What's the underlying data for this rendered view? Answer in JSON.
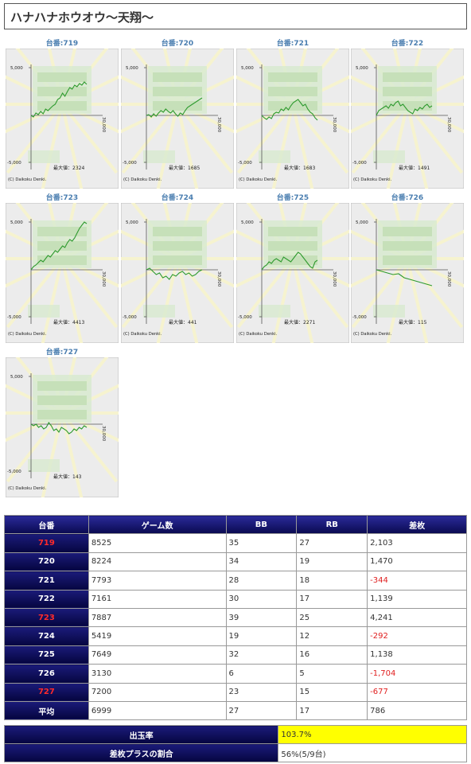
{
  "page": {
    "title": "ハナハナホウオウ〜天翔〜"
  },
  "graph_common": {
    "ytick_top": "5,000",
    "ytick_bottom": "-5,000",
    "xtick": "30,000",
    "credit": "(C) Daikoku Denki.",
    "max_label": "最大値："
  },
  "graphs": [
    {
      "label": "台番:719",
      "max": "2324",
      "path": [
        0,
        -2,
        3,
        1,
        5,
        2,
        8,
        6,
        9,
        12,
        14,
        20,
        22,
        28,
        24,
        30,
        35,
        33,
        38,
        36,
        40,
        38,
        42,
        39
      ]
    },
    {
      "label": "台番:720",
      "max": "1685",
      "path": [
        0,
        1,
        -2,
        2,
        -1,
        3,
        6,
        4,
        8,
        5,
        3,
        6,
        2,
        -1,
        3,
        1,
        6,
        10,
        12,
        14,
        16,
        18,
        20,
        22
      ]
    },
    {
      "label": "台番:721",
      "max": "1683",
      "path": [
        0,
        -3,
        -5,
        -2,
        -4,
        2,
        4,
        3,
        8,
        6,
        10,
        7,
        12,
        16,
        18,
        20,
        16,
        12,
        14,
        8,
        4,
        2,
        -3,
        -6
      ]
    },
    {
      "label": "台番:722",
      "max": "1491",
      "path": [
        0,
        6,
        8,
        10,
        12,
        9,
        14,
        12,
        16,
        18,
        12,
        14,
        10,
        6,
        4,
        2,
        8,
        6,
        10,
        8,
        12,
        14,
        10,
        12
      ]
    },
    {
      "label": "台番:723",
      "max": "4413",
      "path": [
        0,
        4,
        6,
        9,
        12,
        10,
        14,
        18,
        16,
        20,
        24,
        22,
        26,
        30,
        28,
        34,
        38,
        36,
        40,
        46,
        52,
        56,
        60,
        58
      ]
    },
    {
      "label": "台番:724",
      "max": "441",
      "path": [
        0,
        2,
        -2,
        -6,
        -4,
        -10,
        -8,
        -12,
        -6,
        -8,
        -4,
        -2,
        -6,
        -4,
        -8,
        -6,
        -2,
        0
      ]
    },
    {
      "label": "台番:725",
      "max": "2271",
      "path": [
        0,
        4,
        6,
        10,
        8,
        12,
        14,
        12,
        10,
        16,
        14,
        12,
        10,
        14,
        18,
        22,
        20,
        16,
        12,
        8,
        4,
        2,
        10,
        12
      ]
    },
    {
      "label": "台番:726",
      "max": "115",
      "path": [
        0,
        -2,
        -4,
        -6,
        -5,
        -10,
        -12,
        -14,
        -16,
        -18,
        -20
      ]
    },
    {
      "label": "台番:727",
      "max": "143",
      "path": [
        0,
        -2,
        0,
        -4,
        -2,
        -6,
        -4,
        2,
        -2,
        -8,
        -6,
        -10,
        -4,
        -6,
        -8,
        -12,
        -10,
        -6,
        -8,
        -4,
        -6,
        -2,
        -4
      ]
    }
  ],
  "table": {
    "headers": [
      "台番",
      "ゲーム数",
      "BB",
      "RB",
      "差枚"
    ],
    "rows": [
      {
        "id": "719",
        "red": true,
        "games": "8525",
        "bb": "35",
        "rb": "27",
        "diff": "2,103",
        "neg": false
      },
      {
        "id": "720",
        "red": false,
        "games": "8224",
        "bb": "34",
        "rb": "19",
        "diff": "1,470",
        "neg": false
      },
      {
        "id": "721",
        "red": false,
        "games": "7793",
        "bb": "28",
        "rb": "18",
        "diff": "-344",
        "neg": true
      },
      {
        "id": "722",
        "red": false,
        "games": "7161",
        "bb": "30",
        "rb": "17",
        "diff": "1,139",
        "neg": false
      },
      {
        "id": "723",
        "red": true,
        "games": "7887",
        "bb": "39",
        "rb": "25",
        "diff": "4,241",
        "neg": false
      },
      {
        "id": "724",
        "red": false,
        "games": "5419",
        "bb": "19",
        "rb": "12",
        "diff": "-292",
        "neg": true
      },
      {
        "id": "725",
        "red": false,
        "games": "7649",
        "bb": "32",
        "rb": "16",
        "diff": "1,138",
        "neg": false
      },
      {
        "id": "726",
        "red": false,
        "games": "3130",
        "bb": "6",
        "rb": "5",
        "diff": "-1,704",
        "neg": true
      },
      {
        "id": "727",
        "red": true,
        "games": "7200",
        "bb": "23",
        "rb": "15",
        "diff": "-677",
        "neg": true
      },
      {
        "id": "平均",
        "red": false,
        "games": "6999",
        "bb": "27",
        "rb": "17",
        "diff": "786",
        "neg": false
      }
    ]
  },
  "summary": {
    "payout_label": "出玉率",
    "payout_value": "103.7%",
    "plus_label": "差枚プラスの割合",
    "plus_value": "56%(5/9台)"
  },
  "colors": {
    "graph_line": "#2e9a2e",
    "red_id": "#ff2a2a",
    "negative": "#e02020",
    "highlight": "#ffff00"
  }
}
